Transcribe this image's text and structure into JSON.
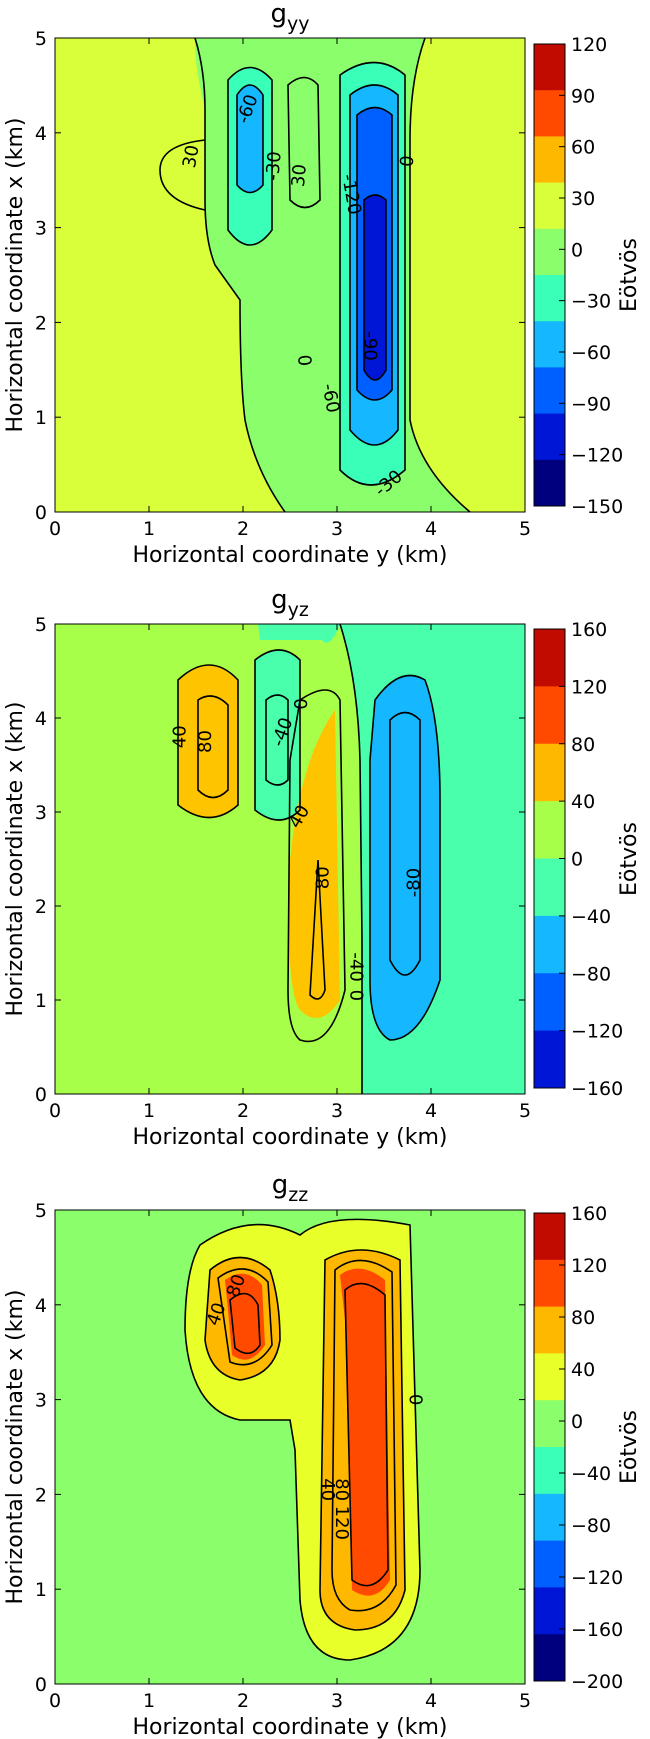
{
  "chart_data": [
    {
      "type": "contour",
      "title": "g",
      "title_sub": "yy",
      "xlabel": "Horizontal coordinate y (km)",
      "ylabel": "Horizontal coordinate x (km)",
      "xlim": [
        0,
        5
      ],
      "ylim": [
        0,
        5
      ],
      "xticks": [
        "0",
        "1",
        "2",
        "3",
        "4",
        "5"
      ],
      "yticks": [
        "0",
        "1",
        "2",
        "3",
        "4",
        "5"
      ],
      "colorbar_label": "Eötvös",
      "colorbar_ticks": [
        "120",
        "90",
        "60",
        "30",
        "0",
        "−30",
        "−60",
        "−90",
        "−120",
        "−150"
      ],
      "colorbar_colors": [
        "#c10a00",
        "#ff4a00",
        "#ffb800",
        "#d9ff3a",
        "#8aff6b",
        "#3affb8",
        "#15b8ff",
        "#0060ff",
        "#0016d6",
        "#00007f"
      ],
      "background_color": "#d9ff3a",
      "contour_labels": [
        {
          "text": "-60",
          "y": 2.05,
          "x": 4.25,
          "rot": -70
        },
        {
          "text": "30",
          "y": 1.45,
          "x": 3.75,
          "rot": -80
        },
        {
          "text": "-30",
          "y": 2.33,
          "x": 3.65,
          "rot": -85
        },
        {
          "text": "30",
          "y": 2.6,
          "x": 3.55,
          "rot": -85
        },
        {
          "text": "-120",
          "y": 3.15,
          "x": 3.35,
          "rot": 80
        },
        {
          "text": "0",
          "y": 3.75,
          "x": 3.7,
          "rot": -85
        },
        {
          "text": "0",
          "y": 2.67,
          "x": 1.6,
          "rot": -95
        },
        {
          "text": "-90",
          "y": 3.35,
          "x": 1.75,
          "rot": 90
        },
        {
          "text": "-60",
          "y": 2.93,
          "x": 1.2,
          "rot": 80
        },
        {
          "text": "-30",
          "y": 3.55,
          "x": 0.3,
          "rot": -40
        }
      ]
    },
    {
      "type": "contour",
      "title": "g",
      "title_sub": "yz",
      "xlabel": "Horizontal coordinate y (km)",
      "ylabel": "Horizontal coordinate x (km)",
      "xlim": [
        0,
        5
      ],
      "ylim": [
        0,
        5
      ],
      "xticks": [
        "0",
        "1",
        "2",
        "3",
        "4",
        "5"
      ],
      "yticks": [
        "0",
        "1",
        "2",
        "3",
        "4",
        "5"
      ],
      "colorbar_label": "Eötvös",
      "colorbar_ticks": [
        "160",
        "120",
        "80",
        "40",
        "0",
        "−40",
        "−80",
        "−120",
        "−160"
      ],
      "colorbar_colors": [
        "#c10a00",
        "#ff4a00",
        "#ffb800",
        "#a8ff4a",
        "#4affab",
        "#15b8ff",
        "#0060ff",
        "#0016d6"
      ],
      "background_color": "#a8ff4a",
      "contour_labels": [
        {
          "text": "40",
          "y": 1.33,
          "x": 3.8,
          "rot": -90
        },
        {
          "text": "80",
          "y": 1.6,
          "x": 3.75,
          "rot": -90
        },
        {
          "text": "0",
          "y": 2.62,
          "x": 4.15,
          "rot": -90
        },
        {
          "text": "-40",
          "y": 2.42,
          "x": 3.85,
          "rot": -70
        },
        {
          "text": "40",
          "y": 2.6,
          "x": 2.95,
          "rot": -60
        },
        {
          "text": "80",
          "y": 2.85,
          "x": 2.3,
          "rot": -90
        },
        {
          "text": "-80",
          "y": 3.82,
          "x": 2.25,
          "rot": -90
        },
        {
          "text": "-40",
          "y": 3.2,
          "x": 1.35,
          "rot": 90
        },
        {
          "text": "0",
          "y": 3.2,
          "x": 1.05,
          "rot": 90
        }
      ]
    },
    {
      "type": "contour",
      "title": "g",
      "title_sub": "zz",
      "xlabel": "Horizontal coordinate y (km)",
      "ylabel": "Horizontal coordinate x (km)",
      "xlim": [
        0,
        5
      ],
      "ylim": [
        0,
        5
      ],
      "xticks": [
        "0",
        "1",
        "2",
        "3",
        "4",
        "5"
      ],
      "yticks": [
        "0",
        "1",
        "2",
        "3",
        "4",
        "5"
      ],
      "colorbar_label": "Eötvös",
      "colorbar_ticks": [
        "160",
        "120",
        "80",
        "40",
        "0",
        "−40",
        "−80",
        "−120",
        "−160",
        "−200"
      ],
      "colorbar_colors": [
        "#c10a00",
        "#ff4a00",
        "#ffb800",
        "#e9ff2a",
        "#8aff6b",
        "#3affb8",
        "#15b8ff",
        "#0060ff",
        "#0016d6",
        "#00007f"
      ],
      "background_color": "#8aff6b",
      "contour_labels": [
        {
          "text": "40",
          "y": 1.72,
          "x": 3.9,
          "rot": -70
        },
        {
          "text": "80",
          "y": 1.93,
          "x": 4.2,
          "rot": -70
        },
        {
          "text": "0",
          "y": 3.85,
          "x": 3.0,
          "rot": -90
        },
        {
          "text": "40",
          "y": 2.9,
          "x": 2.05,
          "rot": 90
        },
        {
          "text": "80",
          "y": 3.05,
          "x": 2.05,
          "rot": 90
        },
        {
          "text": "120",
          "y": 3.05,
          "x": 1.7,
          "rot": 90
        }
      ]
    }
  ]
}
